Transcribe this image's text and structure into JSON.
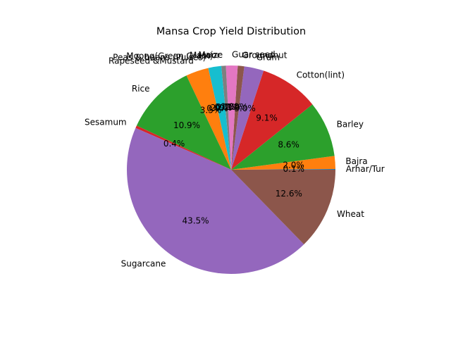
{
  "chart_data": {
    "type": "pie",
    "title": "Mansa Crop Yield Distribution",
    "slices": [
      {
        "label": "Arhar/Tur",
        "value": 0.1,
        "pct_label": "0.1%",
        "color": "#1f77b4"
      },
      {
        "label": "Bajra",
        "value": 2.0,
        "pct_label": "2.0%",
        "color": "#ff7f0e"
      },
      {
        "label": "Barley",
        "value": 8.6,
        "pct_label": "8.6%",
        "color": "#2ca02c"
      },
      {
        "label": "Cotton(lint)",
        "value": 9.1,
        "pct_label": "9.1%",
        "color": "#d62728"
      },
      {
        "label": "Gram",
        "value": 3.0,
        "pct_label": "3.0%",
        "color": "#9467bd"
      },
      {
        "label": "Groundnut",
        "value": 1.0,
        "pct_label": "1.0%",
        "color": "#8c564b"
      },
      {
        "label": "Guar seed",
        "value": 1.8,
        "pct_label": "1.8%",
        "color": "#e377c2"
      },
      {
        "label": "Maize",
        "value": 0.7,
        "pct_label": "0.7%",
        "color": "#7f7f7f"
      },
      {
        "label": "Masoor",
        "value": 0.0,
        "pct_label": "0.0%",
        "color": "#bcbd22"
      },
      {
        "label": "Moong(Green Gram)",
        "value": 2.0,
        "pct_label": "2.0%",
        "color": "#17becf"
      },
      {
        "label": "Peas & beans (Pulses)",
        "value": 0.0,
        "pct_label": "0.0%",
        "color": "#1f77b4"
      },
      {
        "label": "Rapeseed &Mustard",
        "value": 3.5,
        "pct_label": "3.5%",
        "color": "#ff7f0e"
      },
      {
        "label": "Rice",
        "value": 10.9,
        "pct_label": "10.9%",
        "color": "#2ca02c"
      },
      {
        "label": "Sesamum",
        "value": 0.4,
        "pct_label": "0.4%",
        "color": "#d62728"
      },
      {
        "label": "Sugarcane",
        "value": 43.5,
        "pct_label": "43.5%",
        "color": "#9467bd"
      },
      {
        "label": "Wheat",
        "value": 12.6,
        "pct_label": "12.6%",
        "color": "#8c564b"
      }
    ]
  }
}
